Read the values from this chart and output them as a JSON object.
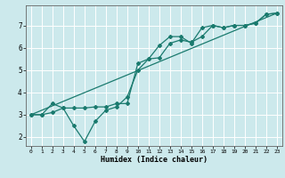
{
  "xlabel": "Humidex (Indice chaleur)",
  "bg_color": "#cce9ec",
  "grid_color": "#ffffff",
  "line_color": "#1a7a6e",
  "xlim": [
    -0.5,
    23.5
  ],
  "ylim": [
    1.6,
    7.9
  ],
  "line1_x": [
    0,
    1,
    2,
    3,
    4,
    5,
    6,
    7,
    8,
    9,
    10,
    11,
    12,
    13,
    14,
    15,
    16,
    17,
    18,
    19,
    20,
    21,
    22,
    23
  ],
  "line1_y": [
    3.0,
    3.0,
    3.1,
    3.3,
    3.3,
    3.3,
    3.35,
    3.35,
    3.5,
    3.5,
    5.3,
    5.5,
    5.55,
    6.2,
    6.35,
    6.25,
    6.5,
    7.0,
    6.9,
    7.0,
    7.0,
    7.1,
    7.5,
    7.55
  ],
  "line2_x": [
    0,
    1,
    2,
    3,
    4,
    5,
    6,
    7,
    8,
    9,
    10,
    11,
    12,
    13,
    14,
    15,
    16,
    17,
    18,
    19,
    20,
    21,
    22,
    23
  ],
  "line2_y": [
    3.0,
    3.0,
    3.5,
    3.3,
    2.5,
    1.8,
    2.7,
    3.2,
    3.35,
    3.8,
    5.0,
    5.5,
    6.1,
    6.5,
    6.5,
    6.2,
    6.9,
    7.0,
    6.9,
    7.0,
    7.0,
    7.1,
    7.5,
    7.55
  ],
  "line3_x": [
    0,
    23
  ],
  "line3_y": [
    3.0,
    7.55
  ],
  "yticks": [
    2,
    3,
    4,
    5,
    6,
    7
  ],
  "xticks": [
    0,
    1,
    2,
    3,
    4,
    5,
    6,
    7,
    8,
    9,
    10,
    11,
    12,
    13,
    14,
    15,
    16,
    17,
    18,
    19,
    20,
    21,
    22,
    23
  ]
}
